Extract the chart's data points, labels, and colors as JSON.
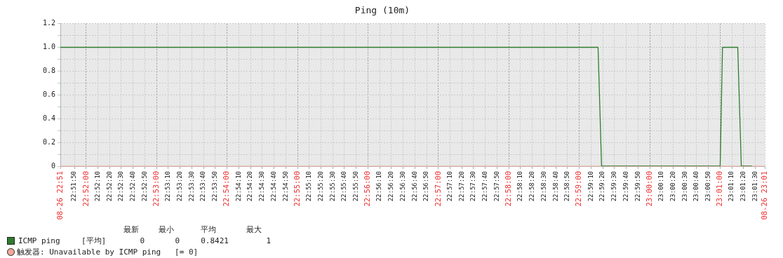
{
  "chart_data": {
    "type": "line",
    "title": "Ping (10m)",
    "xlim": [
      22.86056,
      23.02722
    ],
    "xticks": [
      {
        "value": 22.86056,
        "label": "08-26 22:51"
      },
      {
        "value": 22.86389,
        "label": "22:51:50"
      },
      {
        "value": 22.86667,
        "label": "22:52:00"
      },
      {
        "value": 22.86944,
        "label": "22:52:10"
      },
      {
        "value": 22.87222,
        "label": "22:52:20"
      },
      {
        "value": 22.875,
        "label": "22:52:30"
      },
      {
        "value": 22.87778,
        "label": "22:52:40"
      },
      {
        "value": 22.88056,
        "label": "22:52:50"
      },
      {
        "value": 22.88333,
        "label": "22:53:00"
      },
      {
        "value": 22.88611,
        "label": "22:53:10"
      },
      {
        "value": 22.88889,
        "label": "22:53:20"
      },
      {
        "value": 22.89167,
        "label": "22:53:30"
      },
      {
        "value": 22.89444,
        "label": "22:53:40"
      },
      {
        "value": 22.89722,
        "label": "22:53:50"
      },
      {
        "value": 22.9,
        "label": "22:54:00"
      },
      {
        "value": 22.90278,
        "label": "22:54:10"
      },
      {
        "value": 22.90556,
        "label": "22:54:20"
      },
      {
        "value": 22.90833,
        "label": "22:54:30"
      },
      {
        "value": 22.91111,
        "label": "22:54:40"
      },
      {
        "value": 22.91389,
        "label": "22:54:50"
      },
      {
        "value": 22.91667,
        "label": "22:55:00"
      },
      {
        "value": 22.91944,
        "label": "22:55:10"
      },
      {
        "value": 22.92222,
        "label": "22:55:20"
      },
      {
        "value": 22.925,
        "label": "22:55:30"
      },
      {
        "value": 22.92778,
        "label": "22:55:40"
      },
      {
        "value": 22.93056,
        "label": "22:55:50"
      },
      {
        "value": 22.93333,
        "label": "22:56:00"
      },
      {
        "value": 22.93611,
        "label": "22:56:10"
      },
      {
        "value": 22.93889,
        "label": "22:56:20"
      },
      {
        "value": 22.94167,
        "label": "22:56:30"
      },
      {
        "value": 22.94444,
        "label": "22:56:40"
      },
      {
        "value": 22.94722,
        "label": "22:56:50"
      },
      {
        "value": 22.95,
        "label": "22:57:00"
      },
      {
        "value": 22.95278,
        "label": "22:57:10"
      },
      {
        "value": 22.95556,
        "label": "22:57:20"
      },
      {
        "value": 22.95833,
        "label": "22:57:30"
      },
      {
        "value": 22.96111,
        "label": "22:57:40"
      },
      {
        "value": 22.96389,
        "label": "22:57:50"
      },
      {
        "value": 22.96667,
        "label": "22:58:00"
      },
      {
        "value": 22.96944,
        "label": "22:58:10"
      },
      {
        "value": 22.97222,
        "label": "22:58:20"
      },
      {
        "value": 22.975,
        "label": "22:58:30"
      },
      {
        "value": 22.97778,
        "label": "22:58:40"
      },
      {
        "value": 22.98056,
        "label": "22:58:50"
      },
      {
        "value": 22.98333,
        "label": "22:59:00"
      },
      {
        "value": 22.98611,
        "label": "22:59:10"
      },
      {
        "value": 22.98889,
        "label": "22:59:20"
      },
      {
        "value": 22.99167,
        "label": "22:59:30"
      },
      {
        "value": 22.99444,
        "label": "22:59:40"
      },
      {
        "value": 22.99722,
        "label": "22:59:50"
      },
      {
        "value": 23,
        "label": "23:00:00"
      },
      {
        "value": 23.00278,
        "label": "23:00:10"
      },
      {
        "value": 23.00556,
        "label": "23:00:20"
      },
      {
        "value": 23.00833,
        "label": "23:00:30"
      },
      {
        "value": 23.01111,
        "label": "23:00:40"
      },
      {
        "value": 23.01389,
        "label": "23:00:50"
      },
      {
        "value": 23.01667,
        "label": "23:01:00"
      },
      {
        "value": 23.01944,
        "label": "23:01:10"
      },
      {
        "value": 23.02222,
        "label": "23:01:20"
      },
      {
        "value": 23.025,
        "label": "23:01:30"
      },
      {
        "value": 23.02722,
        "label": "08-26 23:01"
      }
    ],
    "ylim": [
      0,
      1.2
    ],
    "yticks": [
      0,
      {
        "value": 0.1,
        "label": null
      },
      {
        "value": 0.2,
        "label": "0.2"
      },
      {
        "value": 0.3,
        "label": null
      },
      {
        "value": 0.4,
        "label": "0.4"
      },
      {
        "value": 0.5,
        "label": null
      },
      {
        "value": 0.6,
        "label": "0.6"
      },
      {
        "value": 0.7,
        "label": null
      },
      {
        "value": 0.8,
        "label": "0.8"
      },
      {
        "value": 0.9,
        "label": null
      },
      {
        "value": 1,
        "label": "1.0"
      },
      {
        "value": 1.1,
        "label": null
      },
      {
        "value": 1.2,
        "label": "1.2"
      }
    ],
    "series": [
      {
        "name": "ICMP ping",
        "color": "#2e7d2e",
        "x": [
          22.86056,
          22.98778,
          22.98861,
          23.01667,
          23.01722,
          23.02083,
          23.02167,
          23.02417
        ],
        "values": [
          1,
          1,
          0,
          0,
          1,
          1,
          0,
          0
        ]
      }
    ],
    "ref_lines": [
      {
        "axis": "y",
        "value": 0,
        "label": "触发器: Unavailable by ICMP ping   [= 0]",
        "color": "#f0a898"
      }
    ],
    "annotations": [
      "最新",
      "最小",
      "平均",
      "最大",
      "[平均]",
      "0",
      "0",
      "0.8421",
      "1"
    ],
    "grid": true,
    "legend": "bottom",
    "marker": "none",
    "line_style": "solid"
  }
}
